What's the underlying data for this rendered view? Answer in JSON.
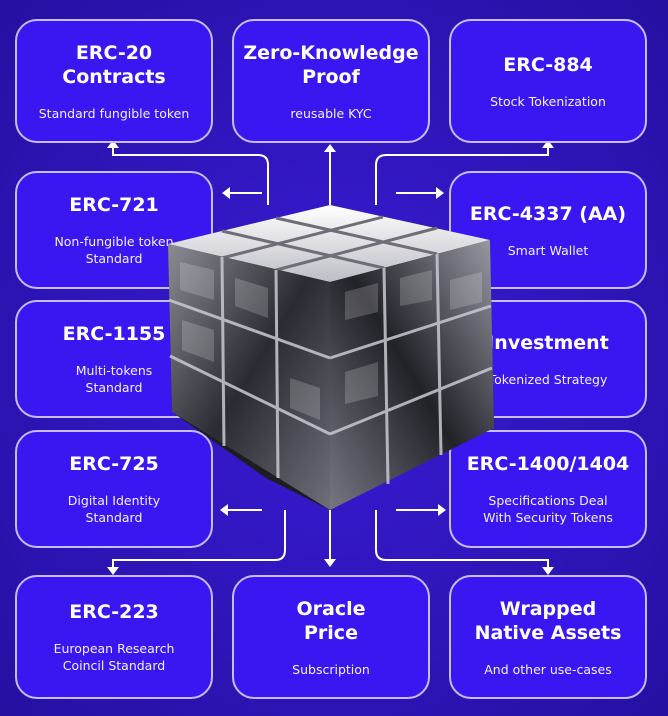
{
  "colors": {
    "background": "#2a12ab",
    "card": "#3a17f0",
    "card_border": "#c6bdff",
    "connector": "#ffffff"
  },
  "cards": [
    {
      "id": "erc20",
      "title": "ERC-20\nContracts",
      "subtitle": "Standard fungible token"
    },
    {
      "id": "zkp",
      "title": "Zero-Knowledge\nProof",
      "subtitle": "reusable KYC"
    },
    {
      "id": "erc884",
      "title": "ERC-884",
      "subtitle": "Stock Tokenization"
    },
    {
      "id": "erc721",
      "title": "ERC-721",
      "subtitle": "Non-fungible token\nStandard"
    },
    {
      "id": "erc4337",
      "title": "ERC-4337 (AA)",
      "subtitle": "Smart Wallet"
    },
    {
      "id": "erc1155",
      "title": "ERC-1155",
      "subtitle": "Multi-tokens\nStandard"
    },
    {
      "id": "investment",
      "title": "Investment",
      "subtitle": "Tokenized Strategy"
    },
    {
      "id": "erc725",
      "title": "ERC-725",
      "subtitle": "Digital Identity\nStandard"
    },
    {
      "id": "erc1400",
      "title": "ERC-1400/1404",
      "subtitle": "Specifications Deal\nWith Security Tokens"
    },
    {
      "id": "erc223",
      "title": "ERC-223",
      "subtitle": "European Research\nCoincil Standard"
    },
    {
      "id": "oracle",
      "title": "Oracle\nPrice",
      "subtitle": "Subscription"
    },
    {
      "id": "wrapped",
      "title": "Wrapped\nNative Assets",
      "subtitle": "And other use-cases"
    }
  ],
  "center_image": "glass-rubiks-cube"
}
